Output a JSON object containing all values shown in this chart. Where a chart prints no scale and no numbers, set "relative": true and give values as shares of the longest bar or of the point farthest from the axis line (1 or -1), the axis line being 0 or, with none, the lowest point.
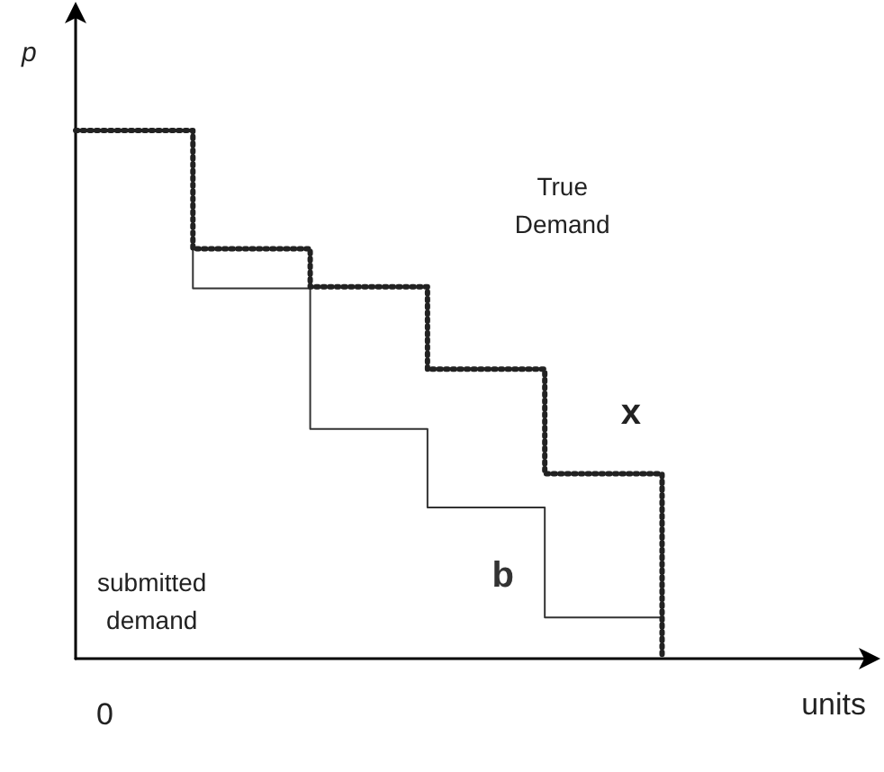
{
  "chart_data": {
    "type": "step",
    "relative": true,
    "xlabel": "units",
    "ylabel": "p",
    "categories": [
      null,
      null,
      null,
      null,
      null,
      null
    ],
    "series": [
      {
        "name": "x",
        "color": "#222222",
        "line_style": "dotted",
        "values": [
          1,
          0.776,
          0.704,
          0.548,
          0.35,
          0
        ]
      },
      {
        "name": "b",
        "color": "#333333",
        "line_style": "solid",
        "values": [
          1,
          0.701,
          0.435,
          0.286,
          0.078,
          0.078
        ]
      }
    ],
    "annotations": [
      "True\nDemand",
      "submitted\ndemand",
      "0"
    ],
    "grid": false,
    "marker": "none"
  }
}
